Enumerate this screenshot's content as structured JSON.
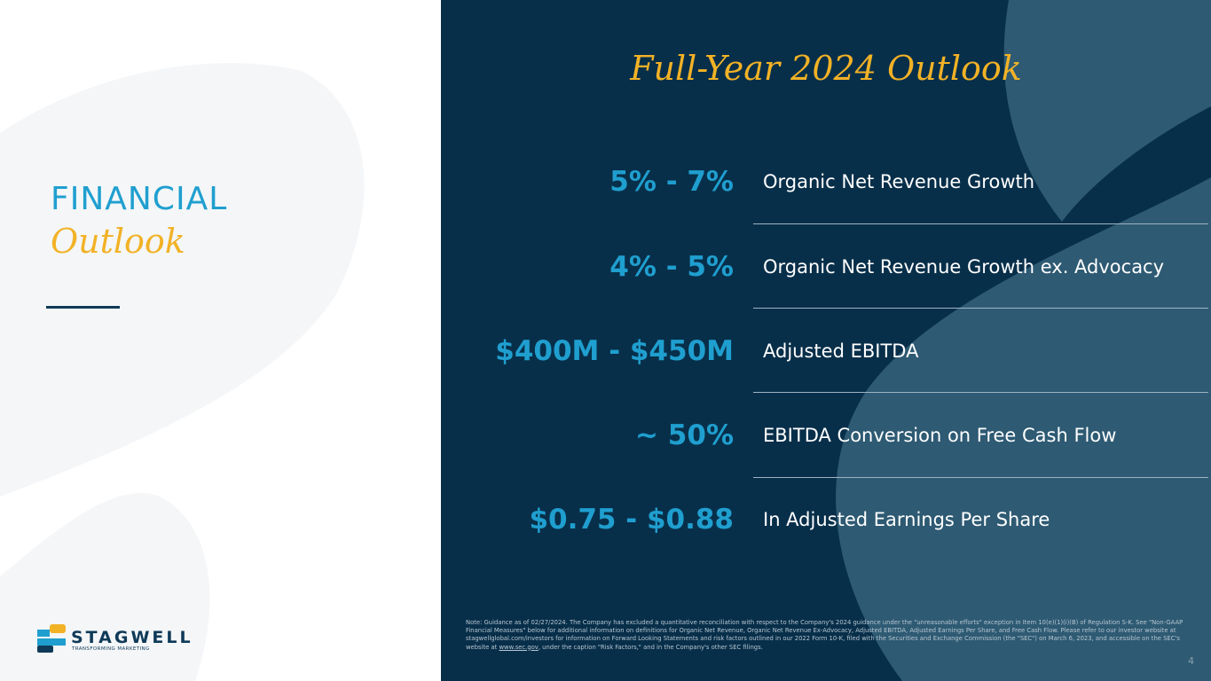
{
  "left": {
    "heading_line1": "FINANCIAL",
    "heading_line2": "Outlook",
    "logo_name": "STAGWELL",
    "logo_tagline": "TRANSFORMING MARKETING"
  },
  "right": {
    "title": "Full-Year 2024 Outlook",
    "items": [
      {
        "value": "5% - 7%",
        "label": "Organic Net Revenue Growth"
      },
      {
        "value": "4% - 5%",
        "label": "Organic Net Revenue Growth ex. Advocacy"
      },
      {
        "value": "$400M - $450M",
        "label": "Adjusted EBITDA"
      },
      {
        "value": "~ 50%",
        "label": "EBITDA Conversion on Free Cash Flow"
      },
      {
        "value": "$0.75 - $0.88",
        "label": "In Adjusted Earnings Per Share"
      }
    ],
    "note_prefix": "Note: Guidance as of 02/27/2024. The Company has excluded a quantitative reconciliation with respect to the Company's 2024 guidance under the \"unreasonable efforts\" exception in Item 10(e)(1)(i)(B) of Regulation S-K. See \"Non-GAAP Financial Measures\" below for additional information on definitions for Organic Net Revenue, Organic Net Revenue Ex-Advocacy, Adjusted EBITDA, Adjusted Earnings Per Share, and Free Cash Flow. Please refer to our investor website at stagwellglobal.com/investors for information on Forward Looking Statements and risk factors outlined in our 2022 Form 10-K, filed with the Securities and Exchange Commission (the \"SEC\") on March 6, 2023, and accessible on the SEC's website at ",
    "note_link": "www.sec.gov",
    "note_suffix": ", under the caption \"Risk Factors,\" and in the Company's other SEC filings.",
    "page_number": "4"
  },
  "colors": {
    "navy": "#082f4a",
    "accent_blue": "#1f9fcf",
    "gold": "#f2b226"
  }
}
